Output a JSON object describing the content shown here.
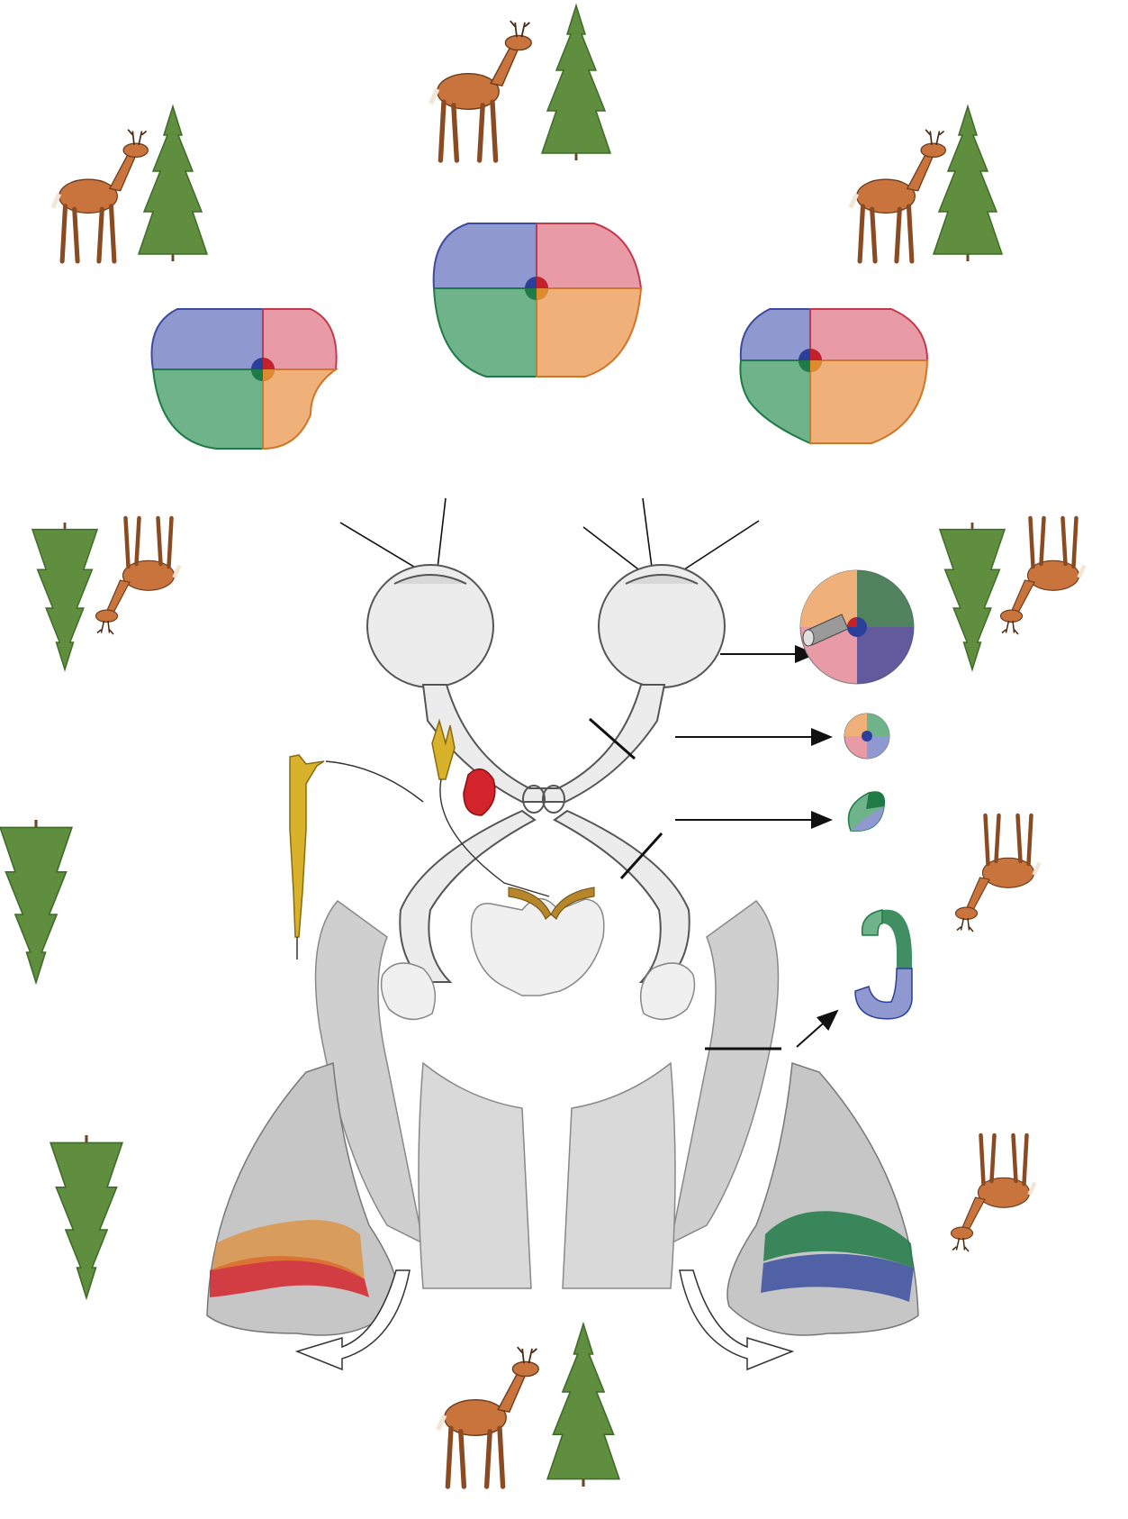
{
  "figure": {
    "description_text": "",
    "colors": {
      "upper_left_quadrant": "#8f98cf",
      "upper_right_quadrant": "#e89aa6",
      "lower_left_quadrant": "#6fb38a",
      "lower_right_quadrant": "#f0b07a",
      "macula_blue": "#2a3f9a",
      "macula_red": "#c4202a",
      "macula_green": "#1f7a45",
      "macula_orange": "#e08a30",
      "deer": "#c9743d",
      "tree": "#5f8f3e",
      "brain_gray": "#b9b9b9",
      "neuron_yellow": "#d8b22a",
      "nucleus_red": "#d2242a"
    },
    "icons": [
      "deer-icon",
      "tree-icon",
      "eye-icon",
      "arrow-icon",
      "rotate-arrow-icon"
    ]
  }
}
